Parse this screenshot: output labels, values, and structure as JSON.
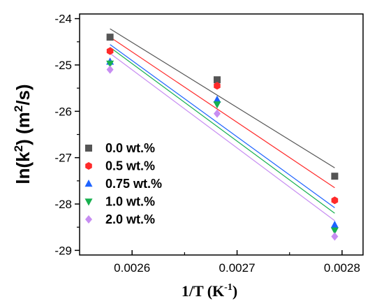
{
  "chart_data": {
    "type": "scatter",
    "title": "",
    "xlabel": {
      "main": "1/T (K",
      "sup": "-1",
      "tail": ")"
    },
    "ylabel": {
      "pre": "ln(k",
      "sup": "2",
      "mid": ") (m",
      "sup2": "2",
      "tail": "/s)"
    },
    "xlim": [
      0.00255,
      0.00282
    ],
    "ylim": [
      -29.1,
      -23.9
    ],
    "xticks": [
      0.0026,
      0.0027,
      0.0028
    ],
    "xtick_labels": [
      "0.0026",
      "0.0027",
      "0.0028"
    ],
    "yticks": [
      -24,
      -25,
      -26,
      -27,
      -28,
      -29
    ],
    "ytick_labels": [
      "-24",
      "-25",
      "-26",
      "-27",
      "-28",
      "-29"
    ],
    "x": [
      0.002579,
      0.002681,
      0.002793
    ],
    "legend_position": "bottom-left",
    "grid": false,
    "series": [
      {
        "name": "0.0 wt.%",
        "color": "#555555",
        "marker": "square",
        "y": [
          -24.4,
          -25.32,
          -27.4
        ],
        "fit": [
          -24.22,
          -27.22
        ]
      },
      {
        "name": "0.5 wt.%",
        "color": "#ff2a2a",
        "marker": "hexagon",
        "y": [
          -24.7,
          -25.45,
          -27.92
        ],
        "fit": [
          -24.4,
          -27.65
        ]
      },
      {
        "name": "0.75 wt.%",
        "color": "#1e63ff",
        "marker": "triangle-up",
        "y": [
          -24.93,
          -25.75,
          -28.45
        ],
        "fit": [
          -24.56,
          -28.08
        ]
      },
      {
        "name": "1.0 wt.%",
        "color": "#17b04f",
        "marker": "triangle-down",
        "y": [
          -24.97,
          -25.85,
          -28.57
        ],
        "fit": [
          -24.62,
          -28.2
        ]
      },
      {
        "name": "2.0 wt.%",
        "color": "#c78df2",
        "marker": "diamond",
        "y": [
          -25.1,
          -26.05,
          -28.7
        ],
        "fit": [
          -24.75,
          -28.36
        ]
      }
    ]
  }
}
